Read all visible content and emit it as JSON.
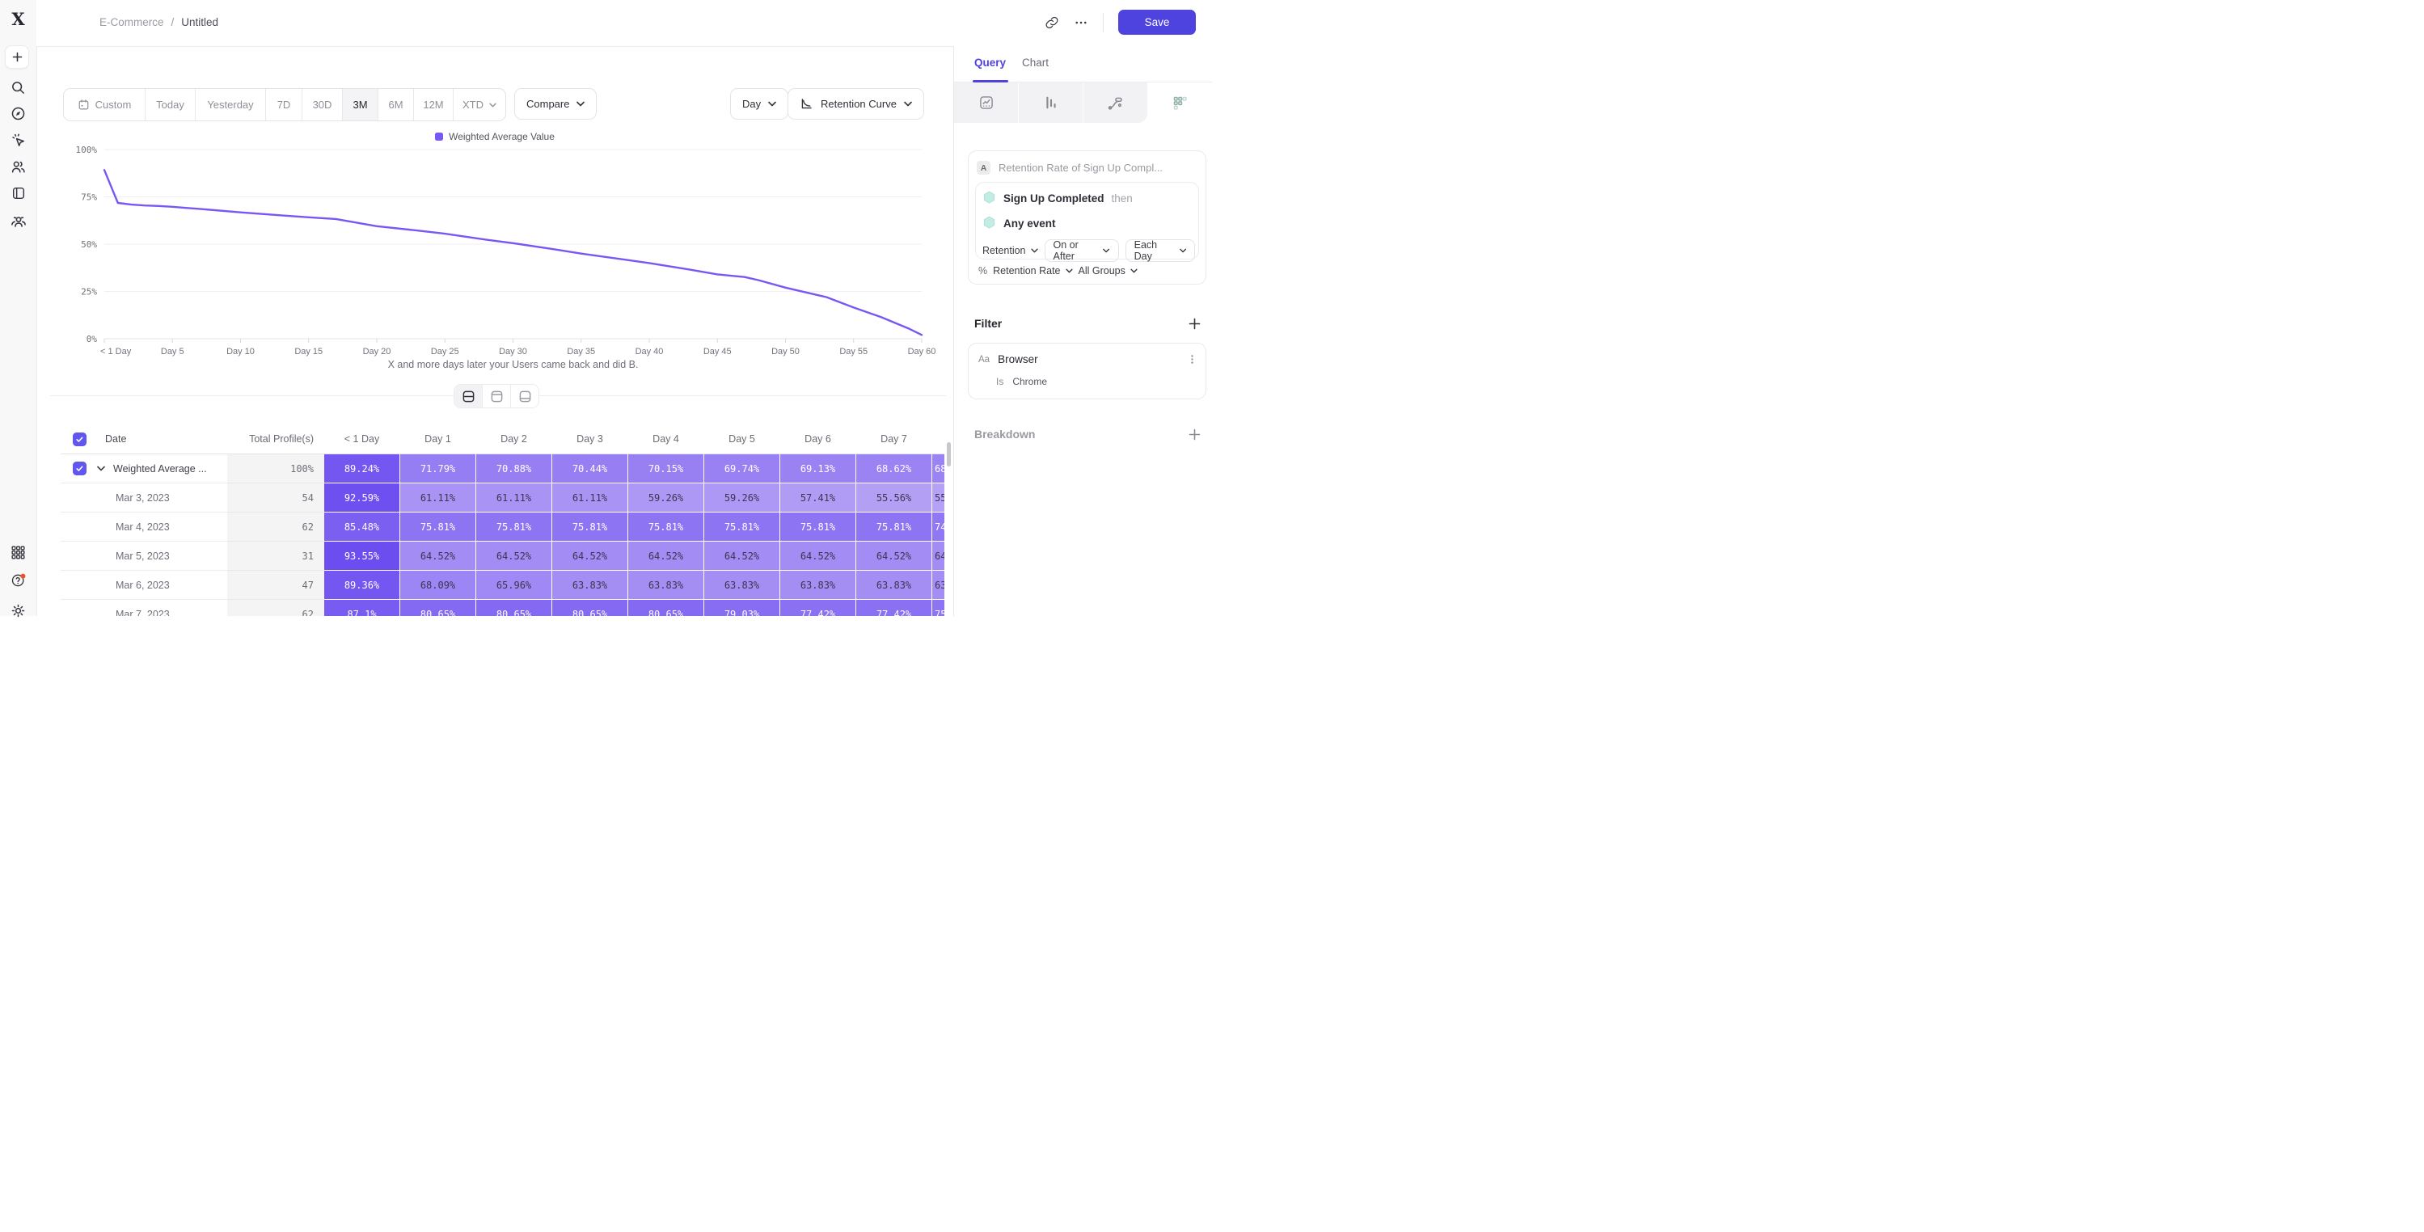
{
  "header": {
    "breadcrumb": [
      "E-Commerce",
      "Untitled"
    ],
    "breadcrumb_sep": "/",
    "save_label": "Save"
  },
  "controls": {
    "date_ranges": [
      "Custom",
      "Today",
      "Yesterday",
      "7D",
      "30D",
      "3M",
      "6M",
      "12M",
      "XTD"
    ],
    "selected_range": "3M",
    "compare_label": "Compare",
    "granularity_label": "Day",
    "chart_type_label": "Retention Curve"
  },
  "chart_data": {
    "type": "line",
    "legend": "Weighted Average Value",
    "series": [
      {
        "name": "Weighted Average Value",
        "color": "#7857f2",
        "points": [
          [
            0,
            89.24
          ],
          [
            1,
            71.79
          ],
          [
            2,
            70.88
          ],
          [
            3,
            70.44
          ],
          [
            4,
            70.15
          ],
          [
            5,
            69.74
          ],
          [
            6,
            69.13
          ],
          [
            7,
            68.62
          ],
          [
            10,
            66.8
          ],
          [
            13,
            65.2
          ],
          [
            15,
            64.2
          ],
          [
            17,
            63.3
          ],
          [
            20,
            59.5
          ],
          [
            23,
            57.2
          ],
          [
            25,
            55.5
          ],
          [
            28,
            52.4
          ],
          [
            30,
            50.5
          ],
          [
            33,
            47.3
          ],
          [
            35,
            45.0
          ],
          [
            38,
            42.0
          ],
          [
            40,
            40.0
          ],
          [
            43,
            36.5
          ],
          [
            45,
            34.0
          ],
          [
            46,
            33.3
          ],
          [
            47,
            32.6
          ],
          [
            48,
            31.0
          ],
          [
            50,
            27.0
          ],
          [
            53,
            22.0
          ],
          [
            55,
            16.5
          ],
          [
            57,
            11.5
          ],
          [
            59,
            5.5
          ],
          [
            60,
            2.0
          ]
        ]
      }
    ],
    "x_ticks": [
      "< 1 Day",
      "Day 5",
      "Day 10",
      "Day 15",
      "Day 20",
      "Day 25",
      "Day 30",
      "Day 35",
      "Day 40",
      "Day 45",
      "Day 50",
      "Day 55",
      "Day 60"
    ],
    "x_tick_days": [
      0,
      5,
      10,
      15,
      20,
      25,
      30,
      35,
      40,
      45,
      50,
      55,
      60
    ],
    "y_ticks": [
      "100%",
      "75%",
      "50%",
      "25%",
      "0%"
    ],
    "y_tick_values": [
      100,
      75,
      50,
      25,
      0
    ],
    "xlim": [
      0,
      60
    ],
    "ylim": [
      0,
      100
    ],
    "caption": "X and more days later your Users came back and did B."
  },
  "table": {
    "headers": [
      "Date",
      "Total Profile(s)",
      "< 1 Day",
      "Day 1",
      "Day 2",
      "Day 3",
      "Day 4",
      "Day 5",
      "Day 6",
      "Day 7"
    ],
    "rows": [
      {
        "label": "Weighted Average ...",
        "checkbox": true,
        "total": "100%",
        "values": [
          89.24,
          71.79,
          70.88,
          70.44,
          70.15,
          69.74,
          69.13,
          68.62
        ],
        "partial": {
          "text": "68",
          "pct": 69.0
        }
      },
      {
        "label": "Mar 3, 2023",
        "checkbox": false,
        "total": "54",
        "values": [
          92.59,
          61.11,
          61.11,
          61.11,
          59.26,
          59.26,
          57.41,
          55.56
        ],
        "partial": {
          "text": "55",
          "pct": 55.0
        }
      },
      {
        "label": "Mar 4, 2023",
        "checkbox": false,
        "total": "62",
        "values": [
          85.48,
          75.81,
          75.81,
          75.81,
          75.81,
          75.81,
          75.81,
          75.81
        ],
        "partial": {
          "text": "74",
          "pct": 74.5
        }
      },
      {
        "label": "Mar 5, 2023",
        "checkbox": false,
        "total": "31",
        "values": [
          93.55,
          64.52,
          64.52,
          64.52,
          64.52,
          64.52,
          64.52,
          64.52
        ],
        "partial": {
          "text": "64",
          "pct": 64.5
        }
      },
      {
        "label": "Mar 6, 2023",
        "checkbox": false,
        "total": "47",
        "values": [
          89.36,
          68.09,
          65.96,
          63.83,
          63.83,
          63.83,
          63.83,
          63.83
        ],
        "partial": {
          "text": "63",
          "pct": 63.8
        }
      },
      {
        "label": "Mar 7, 2023",
        "checkbox": false,
        "total": "62",
        "values": [
          87.1,
          80.65,
          80.65,
          80.65,
          80.65,
          79.03,
          77.42,
          77.42
        ],
        "partial": {
          "text": "75",
          "pct": 75.8
        }
      }
    ]
  },
  "panel": {
    "tabs": [
      "Query",
      "Chart"
    ],
    "active_tab": "Query",
    "view_icons": [
      "insights-chart-icon",
      "bar-chart-icon",
      "flows-icon",
      "retention-grid-icon"
    ],
    "query": {
      "letter": "A",
      "title": "Retention Rate of Sign Up Compl...",
      "step1": "Sign Up Completed",
      "step1_suffix": "then",
      "step2": "Any event",
      "retention_label": "Retention",
      "window_label": "On or After",
      "cadence_label": "Each Day",
      "measure_prefix": "%",
      "measure_label": "Retention Rate",
      "groups_label": "All Groups"
    },
    "filter": {
      "title": "Filter",
      "property_type": "Aa",
      "property": "Browser",
      "operator": "Is",
      "value": "Chrome"
    },
    "breakdown_label": "Breakdown"
  },
  "sidebar": {
    "logo_glyph": "X",
    "icons": [
      "create-plus-icon",
      "search-icon",
      "compass-icon",
      "cursor-spark-icon",
      "users-icon",
      "panel-icon",
      "group-icon",
      "apps-grid-icon",
      "help-icon",
      "settings-gear-icon"
    ]
  },
  "colors": {
    "accent": "#4f43e0",
    "curve": "#7857f2",
    "legend_swatch": "#7a58f3",
    "checkbox": "#6156ee",
    "heat_text_dark": "#3c3550",
    "notification_dot": "#e7512d",
    "teal_hex": "#c3ece4"
  }
}
